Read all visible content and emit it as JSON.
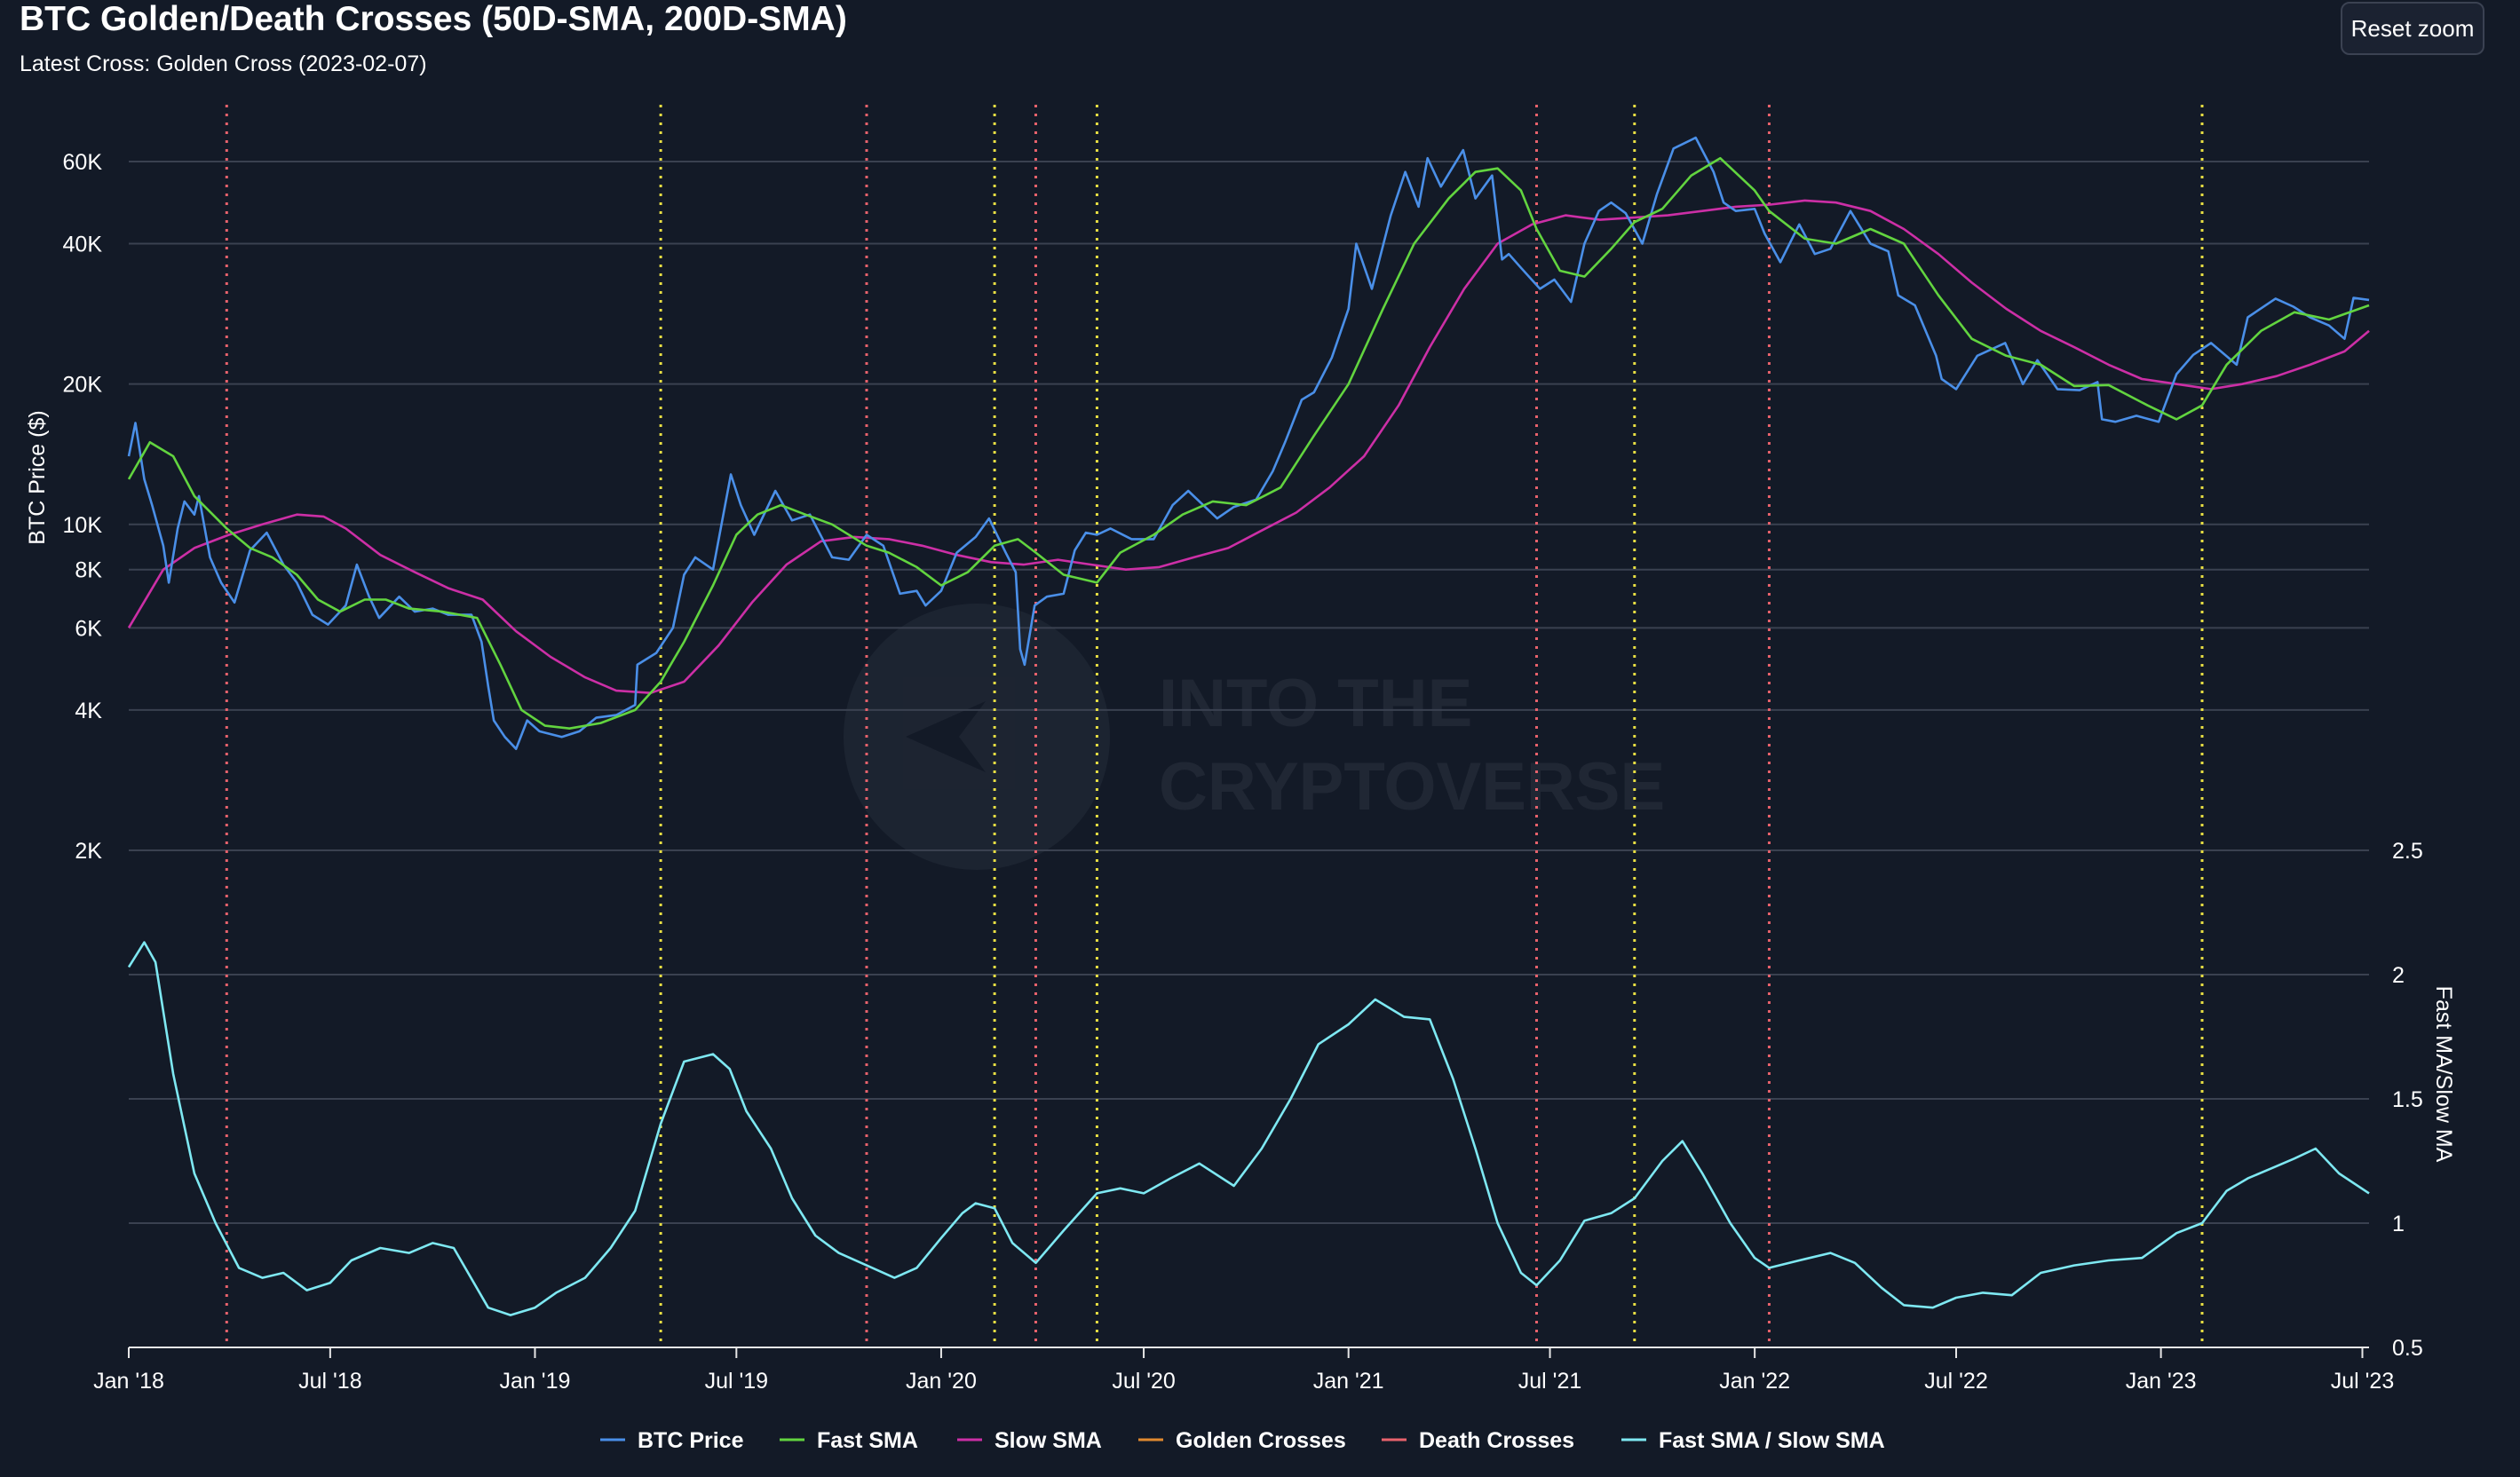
{
  "title": "BTC Golden/Death Crosses (50D-SMA, 200D-SMA)",
  "subtitle": "Latest Cross: Golden Cross (2023-02-07)",
  "reset_zoom_label": "Reset zoom",
  "watermark": "INTO THE CRYPTOVERSE",
  "colors": {
    "background": "#131a27",
    "grid": "#3a4150",
    "btc_price": "#4a8fe8",
    "fast_sma": "#62d43f",
    "slow_sma": "#cc2fa6",
    "golden_crosses": "#e8df43",
    "golden_crosses_legend": "#e0892f",
    "death_crosses": "#e8626c",
    "ratio": "#7ee8f2"
  },
  "chart_data": {
    "type": "line",
    "title": "BTC Golden/Death Crosses (50D-SMA, 200D-SMA)",
    "subtitle": "Latest Cross: Golden Cross (2023-02-07)",
    "xlabel": "",
    "x_range": [
      "2018-01-01",
      "2023-07-07"
    ],
    "x_ticks": [
      {
        "date": "2018-01-01",
        "label": "Jan '18"
      },
      {
        "date": "2018-07-01",
        "label": "Jul '18"
      },
      {
        "date": "2019-01-01",
        "label": "Jan '19"
      },
      {
        "date": "2019-07-01",
        "label": "Jul '19"
      },
      {
        "date": "2020-01-01",
        "label": "Jan '20"
      },
      {
        "date": "2020-07-01",
        "label": "Jul '20"
      },
      {
        "date": "2021-01-01",
        "label": "Jan '21"
      },
      {
        "date": "2021-07-01",
        "label": "Jul '21"
      },
      {
        "date": "2022-01-01",
        "label": "Jan '22"
      },
      {
        "date": "2022-07-01",
        "label": "Jul '22"
      },
      {
        "date": "2023-01-01",
        "label": "Jan '23"
      },
      {
        "date": "2023-07-01",
        "label": "Jul '23"
      }
    ],
    "price_axis": {
      "label": "BTC Price ($)",
      "scale": "log",
      "ticks": [
        {
          "value": 2000,
          "label": "2K"
        },
        {
          "value": 4000,
          "label": "4K"
        },
        {
          "value": 6000,
          "label": "6K"
        },
        {
          "value": 8000,
          "label": "8K"
        },
        {
          "value": 10000,
          "label": "10K"
        },
        {
          "value": 20000,
          "label": "20K"
        },
        {
          "value": 40000,
          "label": "40K"
        },
        {
          "value": 60000,
          "label": "60K"
        }
      ]
    },
    "ratio_axis": {
      "label": "Fast MA/Slow MA",
      "scale": "linear",
      "range": [
        0.5,
        2.5
      ],
      "ticks": [
        {
          "value": 0.5,
          "label": "0.5"
        },
        {
          "value": 1,
          "label": "1"
        },
        {
          "value": 1.5,
          "label": "1.5"
        },
        {
          "value": 2,
          "label": "2"
        },
        {
          "value": 2.5,
          "label": "2.5"
        }
      ]
    },
    "legend": [
      "BTC Price",
      "Fast SMA",
      "Slow SMA",
      "Golden Crosses",
      "Death Crosses",
      "Fast SMA / Slow SMA"
    ],
    "legend_position": "bottom-center",
    "grid": true,
    "golden_crosses": [
      "2019-04-24",
      "2020-02-18",
      "2020-05-20",
      "2021-09-15",
      "2023-02-07"
    ],
    "death_crosses": [
      "2018-03-30",
      "2019-10-26",
      "2020-03-26",
      "2021-06-19",
      "2022-01-14"
    ],
    "series": [
      {
        "name": "BTC Price",
        "axis": "price",
        "x": [
          "2018-01-01",
          "2018-01-07",
          "2018-01-15",
          "2018-01-22",
          "2018-02-01",
          "2018-02-06",
          "2018-02-14",
          "2018-02-20",
          "2018-03-01",
          "2018-03-05",
          "2018-03-15",
          "2018-03-25",
          "2018-04-06",
          "2018-04-20",
          "2018-05-05",
          "2018-05-20",
          "2018-06-01",
          "2018-06-15",
          "2018-06-29",
          "2018-07-15",
          "2018-07-25",
          "2018-08-05",
          "2018-08-14",
          "2018-09-01",
          "2018-09-15",
          "2018-10-01",
          "2018-10-15",
          "2018-11-05",
          "2018-11-14",
          "2018-11-20",
          "2018-11-25",
          "2018-12-05",
          "2018-12-15",
          "2018-12-25",
          "2019-01-05",
          "2019-01-25",
          "2019-02-10",
          "2019-02-25",
          "2019-03-15",
          "2019-04-01",
          "2019-04-03",
          "2019-04-20",
          "2019-05-05",
          "2019-05-15",
          "2019-05-25",
          "2019-06-10",
          "2019-06-26",
          "2019-07-05",
          "2019-07-17",
          "2019-08-05",
          "2019-08-20",
          "2019-09-05",
          "2019-09-25",
          "2019-10-10",
          "2019-10-26",
          "2019-11-10",
          "2019-11-25",
          "2019-12-10",
          "2019-12-18",
          "2020-01-01",
          "2020-01-15",
          "2020-02-01",
          "2020-02-13",
          "2020-02-28",
          "2020-03-08",
          "2020-03-12",
          "2020-03-16",
          "2020-03-25",
          "2020-04-05",
          "2020-04-20",
          "2020-04-30",
          "2020-05-10",
          "2020-05-20",
          "2020-06-01",
          "2020-06-20",
          "2020-07-10",
          "2020-07-27",
          "2020-08-10",
          "2020-09-05",
          "2020-09-20",
          "2020-10-10",
          "2020-10-25",
          "2020-11-05",
          "2020-11-20",
          "2020-12-01",
          "2020-12-17",
          "2021-01-01",
          "2021-01-08",
          "2021-01-22",
          "2021-02-08",
          "2021-02-21",
          "2021-03-05",
          "2021-03-13",
          "2021-03-25",
          "2021-04-14",
          "2021-04-25",
          "2021-05-10",
          "2021-05-19",
          "2021-05-25",
          "2021-06-05",
          "2021-06-22",
          "2021-07-05",
          "2021-07-20",
          "2021-08-01",
          "2021-08-14",
          "2021-08-25",
          "2021-09-07",
          "2021-09-22",
          "2021-10-05",
          "2021-10-20",
          "2021-11-09",
          "2021-11-25",
          "2021-12-04",
          "2021-12-15",
          "2022-01-01",
          "2022-01-10",
          "2022-01-24",
          "2022-02-10",
          "2022-02-24",
          "2022-03-10",
          "2022-03-28",
          "2022-04-15",
          "2022-05-01",
          "2022-05-10",
          "2022-05-25",
          "2022-06-13",
          "2022-06-18",
          "2022-07-01",
          "2022-07-20",
          "2022-08-14",
          "2022-08-30",
          "2022-09-12",
          "2022-09-30",
          "2022-10-20",
          "2022-11-05",
          "2022-11-09",
          "2022-11-21",
          "2022-12-10",
          "2022-12-30",
          "2023-01-15",
          "2023-01-30",
          "2023-02-15",
          "2023-03-10",
          "2023-03-20",
          "2023-04-14",
          "2023-04-30",
          "2023-05-15",
          "2023-06-01",
          "2023-06-15",
          "2023-06-23",
          "2023-07-07"
        ],
        "y": [
          14000,
          16500,
          12500,
          11000,
          9000,
          7500,
          9800,
          11200,
          10500,
          11500,
          8500,
          7500,
          6800,
          8800,
          9600,
          8200,
          7500,
          6400,
          6100,
          6700,
          8200,
          7000,
          6300,
          7000,
          6500,
          6600,
          6400,
          6400,
          5600,
          4500,
          3800,
          3500,
          3300,
          3800,
          3600,
          3500,
          3600,
          3850,
          3900,
          4100,
          5000,
          5300,
          6000,
          7800,
          8500,
          8000,
          12800,
          11000,
          9500,
          11800,
          10200,
          10500,
          8500,
          8400,
          9500,
          9000,
          7100,
          7200,
          6700,
          7200,
          8700,
          9400,
          10300,
          8700,
          7900,
          5400,
          5000,
          6700,
          7000,
          7100,
          8800,
          9600,
          9500,
          9800,
          9300,
          9300,
          11000,
          11800,
          10300,
          10900,
          11300,
          13000,
          15000,
          18500,
          19200,
          22800,
          29000,
          40000,
          32000,
          46000,
          57000,
          48000,
          61000,
          53000,
          63500,
          50000,
          56000,
          37000,
          38000,
          35500,
          32000,
          33500,
          30000,
          40000,
          47000,
          49000,
          46500,
          40000,
          51000,
          64000,
          67500,
          57000,
          49000,
          47000,
          47500,
          42000,
          36500,
          44000,
          38000,
          39000,
          47000,
          40000,
          38500,
          31000,
          29500,
          23000,
          20500,
          19500,
          23000,
          24500,
          20000,
          22500,
          19500,
          19400,
          20200,
          16800,
          16600,
          17100,
          16600,
          21000,
          23100,
          24500,
          22000,
          27800,
          30500,
          29300,
          27800,
          26700,
          25000,
          30600,
          30300
        ],
        "note": ""
      },
      {
        "name": "Fast SMA",
        "axis": "price",
        "x": [
          "2018-01-01",
          "2018-01-20",
          "2018-02-10",
          "2018-03-01",
          "2018-03-30",
          "2018-04-20",
          "2018-05-10",
          "2018-06-01",
          "2018-06-20",
          "2018-07-10",
          "2018-08-01",
          "2018-08-20",
          "2018-09-10",
          "2018-10-10",
          "2018-11-10",
          "2018-12-01",
          "2018-12-20",
          "2019-01-10",
          "2019-02-01",
          "2019-03-01",
          "2019-04-01",
          "2019-04-24",
          "2019-05-15",
          "2019-06-10",
          "2019-07-01",
          "2019-07-20",
          "2019-08-10",
          "2019-09-01",
          "2019-09-25",
          "2019-10-26",
          "2019-11-15",
          "2019-12-10",
          "2020-01-01",
          "2020-01-25",
          "2020-02-18",
          "2020-03-10",
          "2020-03-26",
          "2020-04-20",
          "2020-05-20",
          "2020-06-10",
          "2020-07-10",
          "2020-08-05",
          "2020-09-01",
          "2020-10-01",
          "2020-11-01",
          "2020-12-01",
          "2021-01-01",
          "2021-02-01",
          "2021-03-01",
          "2021-04-01",
          "2021-04-25",
          "2021-05-15",
          "2021-06-05",
          "2021-06-19",
          "2021-07-10",
          "2021-08-01",
          "2021-08-25",
          "2021-09-15",
          "2021-10-10",
          "2021-11-05",
          "2021-12-01",
          "2022-01-01",
          "2022-01-14",
          "2022-02-15",
          "2022-03-15",
          "2022-04-15",
          "2022-05-15",
          "2022-06-15",
          "2022-07-15",
          "2022-08-15",
          "2022-09-15",
          "2022-10-15",
          "2022-11-15",
          "2022-12-20",
          "2023-01-15",
          "2023-02-07",
          "2023-03-01",
          "2023-04-01",
          "2023-05-01",
          "2023-06-01",
          "2023-07-07"
        ],
        "y": [
          12500,
          15000,
          14000,
          11500,
          9800,
          8900,
          8500,
          7800,
          6900,
          6500,
          6900,
          6900,
          6600,
          6500,
          6300,
          5000,
          4000,
          3700,
          3650,
          3750,
          4000,
          4600,
          5600,
          7400,
          9500,
          10500,
          11000,
          10500,
          10000,
          9000,
          8700,
          8100,
          7400,
          7900,
          9000,
          9300,
          8700,
          7800,
          7500,
          8700,
          9500,
          10500,
          11200,
          11000,
          12000,
          15500,
          20000,
          29000,
          40000,
          50000,
          57000,
          58000,
          52000,
          43000,
          35000,
          34000,
          39000,
          44500,
          47500,
          56000,
          61000,
          52000,
          47000,
          41000,
          40000,
          43000,
          40000,
          31000,
          25000,
          23000,
          22000,
          19800,
          19900,
          18000,
          16800,
          18000,
          22000,
          26000,
          28500,
          27500,
          29500
        ]
      },
      {
        "name": "Slow SMA",
        "axis": "price",
        "x": [
          "2018-01-01",
          "2018-02-01",
          "2018-03-01",
          "2018-04-01",
          "2018-05-01",
          "2018-06-01",
          "2018-06-25",
          "2018-07-15",
          "2018-08-15",
          "2018-09-15",
          "2018-10-15",
          "2018-11-15",
          "2018-12-15",
          "2019-01-15",
          "2019-02-15",
          "2019-03-15",
          "2019-04-15",
          "2019-05-15",
          "2019-06-15",
          "2019-07-15",
          "2019-08-15",
          "2019-09-15",
          "2019-10-15",
          "2019-11-15",
          "2019-12-15",
          "2020-01-15",
          "2020-02-15",
          "2020-03-15",
          "2020-04-15",
          "2020-05-15",
          "2020-06-15",
          "2020-07-15",
          "2020-08-15",
          "2020-09-15",
          "2020-10-15",
          "2020-11-15",
          "2020-12-15",
          "2021-01-15",
          "2021-02-15",
          "2021-03-15",
          "2021-04-15",
          "2021-05-15",
          "2021-06-15",
          "2021-07-15",
          "2021-08-15",
          "2021-09-15",
          "2021-10-15",
          "2021-11-15",
          "2021-12-15",
          "2022-01-15",
          "2022-02-15",
          "2022-03-15",
          "2022-04-15",
          "2022-05-15",
          "2022-06-15",
          "2022-07-15",
          "2022-08-15",
          "2022-09-15",
          "2022-10-15",
          "2022-11-15",
          "2022-12-15",
          "2023-01-15",
          "2023-02-15",
          "2023-03-15",
          "2023-04-15",
          "2023-05-15",
          "2023-06-15",
          "2023-07-07"
        ],
        "y": [
          6000,
          8000,
          8900,
          9500,
          10000,
          10500,
          10400,
          9800,
          8600,
          7900,
          7300,
          6900,
          5900,
          5200,
          4700,
          4400,
          4350,
          4600,
          5500,
          6800,
          8200,
          9200,
          9400,
          9300,
          9000,
          8600,
          8300,
          8200,
          8400,
          8200,
          8000,
          8100,
          8500,
          8900,
          9700,
          10600,
          12000,
          14000,
          18000,
          24000,
          32000,
          40000,
          44000,
          46000,
          45000,
          45500,
          46000,
          47000,
          48000,
          48500,
          49500,
          49000,
          47000,
          43000,
          38000,
          33000,
          29000,
          26000,
          24000,
          22000,
          20500,
          20000,
          19500,
          20000,
          20800,
          22000,
          23500,
          26000
        ]
      },
      {
        "name": "Fast SMA / Slow SMA",
        "axis": "ratio",
        "x": [
          "2018-01-01",
          "2018-01-15",
          "2018-01-25",
          "2018-02-10",
          "2018-03-01",
          "2018-03-20",
          "2018-04-10",
          "2018-05-01",
          "2018-05-20",
          "2018-06-10",
          "2018-07-01",
          "2018-07-20",
          "2018-08-15",
          "2018-09-10",
          "2018-10-01",
          "2018-10-20",
          "2018-11-20",
          "2018-12-10",
          "2019-01-01",
          "2019-01-20",
          "2019-02-15",
          "2019-03-10",
          "2019-04-01",
          "2019-04-24",
          "2019-05-15",
          "2019-06-10",
          "2019-06-25",
          "2019-07-10",
          "2019-08-01",
          "2019-08-20",
          "2019-09-10",
          "2019-10-01",
          "2019-10-26",
          "2019-11-20",
          "2019-12-10",
          "2020-01-01",
          "2020-01-20",
          "2020-02-01",
          "2020-02-18",
          "2020-03-05",
          "2020-03-26",
          "2020-04-20",
          "2020-05-20",
          "2020-06-10",
          "2020-07-01",
          "2020-07-25",
          "2020-08-20",
          "2020-09-20",
          "2020-10-15",
          "2020-11-10",
          "2020-12-05",
          "2021-01-01",
          "2021-01-25",
          "2021-02-20",
          "2021-03-15",
          "2021-04-05",
          "2021-04-25",
          "2021-05-15",
          "2021-06-05",
          "2021-06-19",
          "2021-07-10",
          "2021-08-01",
          "2021-08-25",
          "2021-09-15",
          "2021-10-10",
          "2021-10-28",
          "2021-11-15",
          "2021-12-10",
          "2022-01-01",
          "2022-01-14",
          "2022-02-10",
          "2022-03-10",
          "2022-04-01",
          "2022-04-25",
          "2022-05-15",
          "2022-06-10",
          "2022-07-01",
          "2022-07-25",
          "2022-08-20",
          "2022-09-15",
          "2022-10-15",
          "2022-11-15",
          "2022-12-15",
          "2023-01-15",
          "2023-02-07",
          "2023-03-01",
          "2023-03-20",
          "2023-04-10",
          "2023-05-01",
          "2023-05-20",
          "2023-06-10",
          "2023-07-07"
        ],
        "y": [
          2.03,
          2.13,
          2.05,
          1.6,
          1.2,
          1.0,
          0.82,
          0.78,
          0.8,
          0.73,
          0.76,
          0.85,
          0.9,
          0.88,
          0.92,
          0.9,
          0.66,
          0.63,
          0.66,
          0.72,
          0.78,
          0.9,
          1.05,
          1.4,
          1.65,
          1.68,
          1.62,
          1.45,
          1.3,
          1.1,
          0.95,
          0.88,
          0.83,
          0.78,
          0.82,
          0.94,
          1.04,
          1.08,
          1.06,
          0.92,
          0.84,
          0.97,
          1.12,
          1.14,
          1.12,
          1.18,
          1.24,
          1.15,
          1.3,
          1.5,
          1.72,
          1.8,
          1.9,
          1.83,
          1.82,
          1.58,
          1.3,
          1.0,
          0.8,
          0.75,
          0.85,
          1.01,
          1.04,
          1.1,
          1.25,
          1.33,
          1.2,
          1.0,
          0.86,
          0.82,
          0.85,
          0.88,
          0.84,
          0.74,
          0.67,
          0.66,
          0.7,
          0.72,
          0.71,
          0.8,
          0.83,
          0.85,
          0.86,
          0.96,
          1.0,
          1.13,
          1.18,
          1.22,
          1.26,
          1.3,
          1.2,
          1.12
        ]
      }
    ]
  }
}
